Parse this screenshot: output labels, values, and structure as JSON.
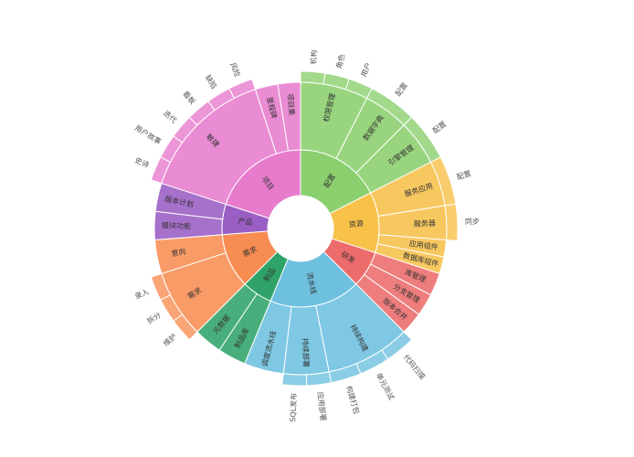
{
  "chart_data": {
    "type": "sunburst",
    "title": "",
    "colors": {
      "配置": "#8bcf6e",
      "资源": "#f7c14a",
      "研发": "#ec6b6b",
      "流水线": "#6ec0df",
      "制品": "#2fa369",
      "需求": "#f88d52",
      "项目": "#e77ccd",
      "产品": "#9a5ec4"
    },
    "tree": [
      {
        "name": "配置",
        "value": 14,
        "children": [
          {
            "name": "权限管理",
            "value": 6,
            "children": [
              {
                "name": "机构",
                "value": 2
              },
              {
                "name": "角色",
                "value": 2
              },
              {
                "name": "用户",
                "value": 2
              }
            ]
          },
          {
            "name": "数据字典",
            "value": 4,
            "children": [
              {
                "name": "配置",
                "value": 4
              }
            ]
          },
          {
            "name": "引擎管理",
            "value": 4,
            "children": [
              {
                "name": "配置",
                "value": 4
              }
            ]
          }
        ]
      },
      {
        "name": "资源",
        "value": 10,
        "children": [
          {
            "name": "服务应用",
            "value": 4,
            "children": [
              {
                "name": "配置",
                "value": 4
              }
            ]
          },
          {
            "name": "服务器",
            "value": 3,
            "children": [
              {
                "name": "同步",
                "value": 3
              }
            ]
          },
          {
            "name": "应用组件",
            "value": 1.5
          },
          {
            "name": "数据库组件",
            "value": 1.5
          }
        ]
      },
      {
        "name": "研发",
        "value": 6,
        "children": [
          {
            "name": "库管理",
            "value": 2
          },
          {
            "name": "分支管理",
            "value": 2
          },
          {
            "name": "版本合并",
            "value": 2
          }
        ]
      },
      {
        "name": "流水线",
        "value": 15,
        "children": [
          {
            "name": "持续构建",
            "value": 7.5,
            "children": [
              {
                "name": "代码扫描",
                "value": 2.5
              },
              {
                "name": "单元测试",
                "value": 2.5
              },
              {
                "name": "构建打包",
                "value": 2.5
              }
            ]
          },
          {
            "name": "持续部署",
            "value": 4,
            "children": [
              {
                "name": "应用部署",
                "value": 2
              },
              {
                "name": "SQL发布",
                "value": 2
              }
            ]
          },
          {
            "name": "调度流水线",
            "value": 3.5
          }
        ]
      },
      {
        "name": "制品",
        "value": 5,
        "children": [
          {
            "name": "制品库",
            "value": 2.5
          },
          {
            "name": "元数据",
            "value": 2.5
          }
        ]
      },
      {
        "name": "需求",
        "value": 9,
        "children": [
          {
            "name": "需求",
            "value": 6,
            "children": [
              {
                "name": "维护",
                "value": 2
              },
              {
                "name": "拆分",
                "value": 2
              },
              {
                "name": "录入",
                "value": 2
              }
            ]
          },
          {
            "name": "意向",
            "value": 3
          }
        ]
      },
      {
        "name": "产品",
        "value": 5,
        "children": [
          {
            "name": "模块功能",
            "value": 2.5
          },
          {
            "name": "版本计划",
            "value": 2.5
          }
        ]
      },
      {
        "name": "项目",
        "value": 16,
        "children": [
          {
            "name": "敏捷",
            "value": 12,
            "children": [
              {
                "name": "史诗",
                "value": 2
              },
              {
                "name": "用户故事",
                "value": 2
              },
              {
                "name": "迭代",
                "value": 2
              },
              {
                "name": "看板",
                "value": 2
              },
              {
                "name": "缺陷",
                "value": 2
              },
              {
                "name": "风险",
                "value": 2
              }
            ]
          },
          {
            "name": "里程碑",
            "value": 2
          },
          {
            "name": "项目集",
            "value": 2
          }
        ]
      }
    ]
  }
}
